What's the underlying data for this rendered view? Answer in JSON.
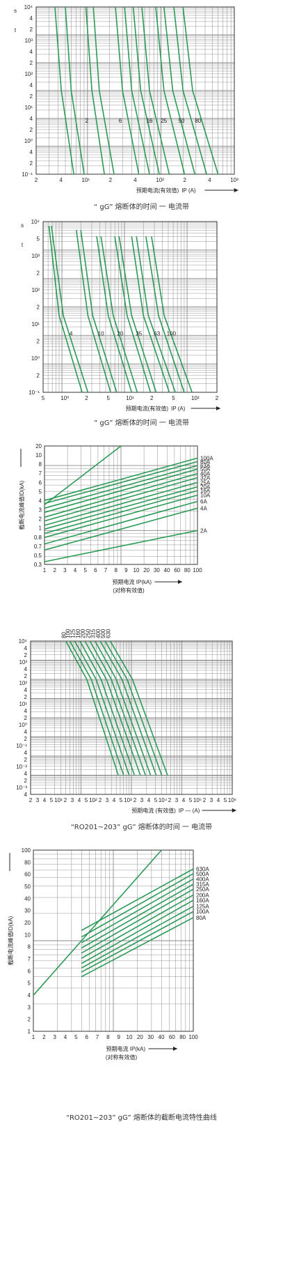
{
  "chart_data": [
    {
      "id": "chart1",
      "type": "line",
      "scale": "log-log",
      "xlim": [
        2,
        1000
      ],
      "ylim": [
        0.01,
        10000
      ],
      "ytop_label": "s",
      "ylabel": "t",
      "x_ticks": [
        "2",
        "4",
        "10¹",
        "2",
        "4",
        "10²",
        "2",
        "4",
        "10³"
      ],
      "y_ticks": [
        "10⁴",
        "4",
        "2",
        "10³",
        "4",
        "2",
        "10²",
        "4",
        "2",
        "10¹",
        "4",
        "2",
        "10⁰",
        "4",
        "2",
        "10⁻¹"
      ],
      "xlabel": "预期电流(有效值)",
      "xsymbol": "IP (A)",
      "caption": "“ gG”  熔断体的时间 一 电流带",
      "series": [
        {
          "name": "2",
          "points": [
            [
              3.6,
              10000
            ],
            [
              4.4,
              10
            ],
            [
              6.5,
              0.01
            ]
          ]
        },
        {
          "name": "",
          "points": [
            [
              5.0,
              10000
            ],
            [
              6.0,
              10
            ],
            [
              9.0,
              0.01
            ]
          ]
        },
        {
          "name": "6",
          "points": [
            [
              9.5,
              10000
            ],
            [
              11.5,
              10
            ],
            [
              17.0,
              0.01
            ]
          ]
        },
        {
          "name": "",
          "points": [
            [
              12.0,
              10000
            ],
            [
              14.5,
              10
            ],
            [
              23.0,
              0.01
            ]
          ]
        },
        {
          "name": "16",
          "points": [
            [
              24.0,
              10000
            ],
            [
              30.0,
              10
            ],
            [
              50.0,
              0.01
            ]
          ]
        },
        {
          "name": "",
          "points": [
            [
              32.0,
              10000
            ],
            [
              40.0,
              10
            ],
            [
              70.0,
              0.01
            ]
          ]
        },
        {
          "name": "25",
          "points": [
            [
              42.0,
              10000
            ],
            [
              53.0,
              10
            ],
            [
              95.0,
              0.01
            ]
          ]
        },
        {
          "name": "",
          "points": [
            [
              55.0,
              10000
            ],
            [
              70.0,
              10
            ],
            [
              130.0,
              0.01
            ]
          ]
        },
        {
          "name": "50",
          "points": [
            [
              85.0,
              10000
            ],
            [
              110.0,
              10
            ],
            [
              210.0,
              0.01
            ]
          ]
        },
        {
          "name": "",
          "points": [
            [
              110.0,
              10000
            ],
            [
              145.0,
              10
            ],
            [
              290.0,
              0.01
            ]
          ]
        },
        {
          "name": "80",
          "points": [
            [
              150.0,
              10000
            ],
            [
              200.0,
              10
            ],
            [
              420.0,
              0.01
            ]
          ]
        },
        {
          "name": "",
          "points": [
            [
              200.0,
              10000
            ],
            [
              270.0,
              10
            ],
            [
              600.0,
              0.01
            ]
          ]
        }
      ],
      "curve_labels": [
        {
          "text": "2",
          "x": 9.8,
          "y": 0.7
        },
        {
          "text": "6",
          "x": 28,
          "y": 0.7
        },
        {
          "text": "16",
          "x": 70,
          "y": 0.7
        },
        {
          "text": "25",
          "x": 110,
          "y": 0.7
        },
        {
          "text": "50",
          "x": 190,
          "y": 0.7
        },
        {
          "text": "80",
          "x": 320,
          "y": 0.7
        }
      ]
    },
    {
      "id": "chart2",
      "type": "line",
      "scale": "log-log",
      "xlim": [
        50,
        30000
      ],
      "ylim": [
        0.01,
        10000
      ],
      "ytop_label": "s",
      "ylabel": "t",
      "x_ticks": [
        "5",
        "10⁰",
        "2",
        "5",
        "10¹",
        "2",
        "5",
        "10²",
        "2"
      ],
      "y_ticks": [
        "10⁴",
        "5",
        "10³",
        "2",
        "10²",
        "2",
        "10¹",
        "2",
        "10⁰",
        "2",
        "10⁻¹"
      ],
      "xlabel": "预期电流(有效值)",
      "xsymbol": "IP (A)",
      "caption": "” gG”  熔断体的时间 一 电流带",
      "series": [
        {
          "name": "4",
          "points": [
            [
              62,
              7000
            ],
            [
              90,
              5
            ],
            [
              210,
              0.01
            ]
          ]
        },
        {
          "name": "",
          "points": [
            [
              68,
              7000
            ],
            [
              105,
              5
            ],
            [
              260,
              0.01
            ]
          ]
        },
        {
          "name": "10",
          "points": [
            [
              170,
              5000
            ],
            [
              260,
              5
            ],
            [
              600,
              0.01
            ]
          ]
        },
        {
          "name": "",
          "points": [
            [
              200,
              5000
            ],
            [
              310,
              5
            ],
            [
              750,
              0.01
            ]
          ]
        },
        {
          "name": "20",
          "points": [
            [
              360,
              3000
            ],
            [
              550,
              5
            ],
            [
              1300,
              0.01
            ]
          ]
        },
        {
          "name": "",
          "points": [
            [
              420,
              3000
            ],
            [
              660,
              5
            ],
            [
              1600,
              0.01
            ]
          ]
        },
        {
          "name": "35",
          "points": [
            [
              700,
              3000
            ],
            [
              1100,
              5
            ],
            [
              2600,
              0.01
            ]
          ]
        },
        {
          "name": "",
          "points": [
            [
              820,
              3000
            ],
            [
              1300,
              5
            ],
            [
              3200,
              0.01
            ]
          ]
        },
        {
          "name": "63",
          "points": [
            [
              1300,
              3000
            ],
            [
              2000,
              5
            ],
            [
              5200,
              0.01
            ]
          ]
        },
        {
          "name": "",
          "points": [
            [
              1550,
              3000
            ],
            [
              2400,
              5
            ],
            [
              6500,
              0.01
            ]
          ]
        },
        {
          "name": "100",
          "points": [
            [
              2200,
              3000
            ],
            [
              3500,
              5
            ],
            [
              9000,
              0.01
            ]
          ]
        },
        {
          "name": "",
          "points": [
            [
              2700,
              3000
            ],
            [
              4300,
              5
            ],
            [
              12000,
              0.01
            ]
          ]
        }
      ],
      "curve_labels": [
        {
          "text": "4",
          "x": 140,
          "y": 1.0
        },
        {
          "text": "10",
          "x": 420,
          "y": 1.0
        },
        {
          "text": "20",
          "x": 850,
          "y": 1.0
        },
        {
          "text": "35",
          "x": 1700,
          "y": 1.0
        },
        {
          "text": "63",
          "x": 3300,
          "y": 1.0
        },
        {
          "text": "100",
          "x": 5600,
          "y": 1.0
        }
      ]
    },
    {
      "id": "chart3",
      "type": "line",
      "scale": "log-log",
      "xlim": [
        1,
        100
      ],
      "ylim": [
        0.3,
        20
      ],
      "x_ticks": [
        "1",
        "2",
        "3",
        "4",
        "5",
        "6",
        "7",
        "8",
        "9",
        "10",
        "20",
        "30",
        "40",
        "60",
        "80",
        "100"
      ],
      "y_ticks": [
        "20",
        "10",
        "8",
        "7",
        "6",
        "5",
        "4",
        "3",
        "2",
        "1",
        "0.8",
        "0.7",
        "0.5",
        "0.3"
      ],
      "ylabel": "截断电流峰值ID(kA)",
      "xlabel": "预期电流 IP(kA)",
      "xlabel2": "(对称有效值)",
      "series": [
        {
          "name": "100A",
          "start": [
            1,
            2.9
          ],
          "end": [
            100,
            13
          ]
        },
        {
          "name": "80A",
          "start": [
            1,
            2.6
          ],
          "end": [
            100,
            11.5
          ]
        },
        {
          "name": "63A",
          "start": [
            1,
            2.2
          ],
          "end": [
            100,
            10
          ]
        },
        {
          "name": "50A",
          "start": [
            1,
            1.9
          ],
          "end": [
            100,
            8.8
          ]
        },
        {
          "name": "40A",
          "start": [
            1,
            1.6
          ],
          "end": [
            100,
            7.5
          ]
        },
        {
          "name": "32A",
          "start": [
            1,
            1.4
          ],
          "end": [
            100,
            6.5
          ]
        },
        {
          "name": "25A",
          "start": [
            1,
            1.2
          ],
          "end": [
            100,
            5.5
          ]
        },
        {
          "name": "20A",
          "start": [
            1,
            1.05
          ],
          "end": [
            100,
            4.7
          ]
        },
        {
          "name": "16A",
          "start": [
            1,
            0.9
          ],
          "end": [
            100,
            4.1
          ]
        },
        {
          "name": "10A",
          "start": [
            1,
            0.78
          ],
          "end": [
            100,
            3.5
          ]
        },
        {
          "name": "6A",
          "start": [
            1,
            0.62
          ],
          "end": [
            100,
            2.8
          ]
        },
        {
          "name": "4A",
          "start": [
            1,
            0.5
          ],
          "end": [
            100,
            2.2
          ]
        },
        {
          "name": "2A",
          "start": [
            1,
            0.33
          ],
          "end": [
            100,
            1.0
          ]
        }
      ],
      "envelope": {
        "start": [
          1,
          2.5
        ],
        "end": [
          10,
          20
        ]
      }
    },
    {
      "id": "chart4",
      "type": "line",
      "scale": "log-log",
      "xlim": [
        100,
        1000000
      ],
      "ylim": [
        0.0001,
        10000
      ],
      "x_ticks": [
        "2",
        "3",
        "4",
        "5",
        "10¹",
        "2",
        "3",
        "4",
        "5",
        "10²",
        "2",
        "3",
        "4",
        "5",
        "10³",
        "2",
        "3",
        "4",
        "5",
        "10⁴",
        "2",
        "3",
        "4",
        "5",
        "10⁵",
        "2",
        "3",
        "4",
        "5",
        "10⁶"
      ],
      "y_ticks": [
        "10⁴",
        "4",
        "2",
        "10³",
        "4",
        "2",
        "10²",
        "4",
        "2",
        "10¹",
        "4",
        "2",
        "10⁰",
        "4",
        "2",
        "10⁻¹",
        "4",
        "2",
        "10⁻²",
        "4",
        "2",
        "10⁻³",
        "4"
      ],
      "top_labels": [
        "80",
        "100",
        "125",
        "160",
        "200",
        "250",
        "315",
        "400",
        "500",
        "630"
      ],
      "xlabel": "预期电流 (有效值)",
      "xsymbol": "IP — (A)",
      "caption": "“RO201~203” gG”  熔断体的时间 一 电流带",
      "series": [
        {
          "name": "80",
          "points": [
            [
              500,
              10000
            ],
            [
              1300,
              100
            ],
            [
              5500,
              0.001
            ]
          ]
        },
        {
          "name": "100",
          "points": [
            [
              600,
              10000
            ],
            [
              1600,
              100
            ],
            [
              7000,
              0.001
            ]
          ]
        },
        {
          "name": "125",
          "points": [
            [
              750,
              10000
            ],
            [
              2000,
              100
            ],
            [
              9000,
              0.001
            ]
          ]
        },
        {
          "name": "160",
          "points": [
            [
              950,
              10000
            ],
            [
              2500,
              100
            ],
            [
              11500,
              0.001
            ]
          ]
        },
        {
          "name": "200",
          "points": [
            [
              1200,
              10000
            ],
            [
              3200,
              100
            ],
            [
              15000,
              0.001
            ]
          ]
        },
        {
          "name": "250",
          "points": [
            [
              1500,
              10000
            ],
            [
              4000,
              100
            ],
            [
              19000,
              0.001
            ]
          ]
        },
        {
          "name": "315",
          "points": [
            [
              1900,
              10000
            ],
            [
              5000,
              100
            ],
            [
              24000,
              0.001
            ]
          ]
        },
        {
          "name": "400",
          "points": [
            [
              2400,
              10000
            ],
            [
              6500,
              100
            ],
            [
              31000,
              0.001
            ]
          ]
        },
        {
          "name": "500",
          "points": [
            [
              3000,
              10000
            ],
            [
              8200,
              100
            ],
            [
              40000,
              0.001
            ]
          ]
        },
        {
          "name": "630",
          "points": [
            [
              3800,
              10000
            ],
            [
              10500,
              100
            ],
            [
              52000,
              0.001
            ]
          ]
        }
      ]
    },
    {
      "id": "chart5",
      "type": "line",
      "scale": "log-log",
      "xlim": [
        1,
        100
      ],
      "ylim": [
        1,
        100
      ],
      "x_ticks": [
        "1",
        "2",
        "3",
        "4",
        "5",
        "6",
        "7",
        "8",
        "9",
        "10",
        "20",
        "30",
        "40",
        "60",
        "80",
        "100"
      ],
      "y_ticks": [
        "100",
        "80",
        "60",
        "50",
        "40",
        "30",
        "20",
        "10",
        "8",
        "7",
        "6",
        "5",
        "4",
        "3",
        "2",
        "1"
      ],
      "ylabel": "截断电流峰值ID(kA)",
      "xlabel": "预期电流 IP(kA)",
      "xlabel2": "(对称有效值)",
      "caption": "“RO201~203” gG”  熔断体的截断电流特性曲线",
      "series": [
        {
          "name": "630A",
          "start": [
            4,
            13
          ],
          "end": [
            100,
            62
          ]
        },
        {
          "name": "500A",
          "start": [
            4,
            11
          ],
          "end": [
            100,
            55
          ]
        },
        {
          "name": "400A",
          "start": [
            4,
            9.5
          ],
          "end": [
            100,
            48
          ]
        },
        {
          "name": "315A",
          "start": [
            4,
            8.3
          ],
          "end": [
            100,
            42
          ]
        },
        {
          "name": "250A",
          "start": [
            4,
            7.3
          ],
          "end": [
            100,
            37
          ]
        },
        {
          "name": "200A",
          "start": [
            4,
            6.4
          ],
          "end": [
            100,
            32
          ]
        },
        {
          "name": "160A",
          "start": [
            4,
            5.6
          ],
          "end": [
            100,
            28
          ]
        },
        {
          "name": "125A",
          "start": [
            4,
            5.0
          ],
          "end": [
            100,
            24
          ]
        },
        {
          "name": "100A",
          "start": [
            4,
            4.5
          ],
          "end": [
            100,
            21
          ]
        },
        {
          "name": "80A",
          "start": [
            4,
            4.0
          ],
          "end": [
            100,
            18
          ]
        }
      ],
      "envelope": {
        "start": [
          1,
          2.5
        ],
        "end": [
          40,
          100
        ]
      }
    }
  ],
  "colors": {
    "curve": "#2a9a55",
    "grid": "#8a8a8a",
    "frame": "#333333"
  }
}
